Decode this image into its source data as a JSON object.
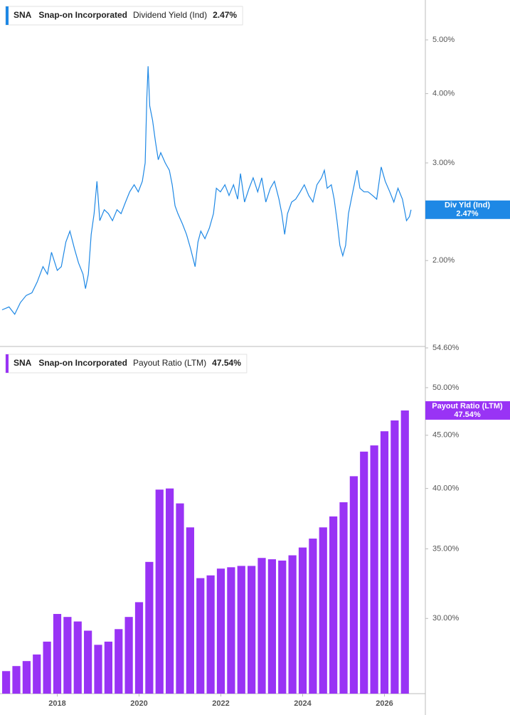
{
  "chart_data": [
    {
      "type": "line",
      "ticker": "SNA",
      "company": "Snap-on Incorporated",
      "series_name": "Dividend Yield (Ind)",
      "badge_label": "Div Yld (Ind)",
      "last": {
        "value": 2.47,
        "label": "2.47%"
      },
      "color": "#1e88e5",
      "log_y": true,
      "xlim": [
        2016.6,
        2027.0
      ],
      "ylim": [
        1.4,
        5.9
      ],
      "yticks": [
        {
          "value": 2,
          "label": "2.00%"
        },
        {
          "value": 3,
          "label": "3.00%"
        },
        {
          "value": 4,
          "label": "4.00%"
        },
        {
          "value": 5,
          "label": "5.00%"
        }
      ],
      "x": [
        2016.65,
        2016.82,
        2016.96,
        2017.1,
        2017.24,
        2017.38,
        2017.51,
        2017.65,
        2017.76,
        2017.86,
        2018.0,
        2018.1,
        2018.21,
        2018.31,
        2018.42,
        2018.52,
        2018.63,
        2018.69,
        2018.76,
        2018.83,
        2018.9,
        2018.97,
        2019.04,
        2019.15,
        2019.25,
        2019.35,
        2019.46,
        2019.56,
        2019.67,
        2019.77,
        2019.88,
        2019.98,
        2020.08,
        2020.15,
        2020.19,
        2020.22,
        2020.26,
        2020.33,
        2020.4,
        2020.47,
        2020.53,
        2020.64,
        2020.74,
        2020.81,
        2020.88,
        2020.95,
        2021.06,
        2021.16,
        2021.26,
        2021.37,
        2021.44,
        2021.51,
        2021.61,
        2021.72,
        2021.82,
        2021.89,
        2021.99,
        2022.1,
        2022.2,
        2022.31,
        2022.41,
        2022.48,
        2022.58,
        2022.69,
        2022.79,
        2022.9,
        2023.0,
        2023.1,
        2023.21,
        2023.31,
        2023.42,
        2023.49,
        2023.56,
        2023.63,
        2023.73,
        2023.83,
        2023.94,
        2024.04,
        2024.15,
        2024.25,
        2024.35,
        2024.46,
        2024.53,
        2024.6,
        2024.7,
        2024.77,
        2024.84,
        2024.91,
        2024.98,
        2025.05,
        2025.12,
        2025.19,
        2025.26,
        2025.33,
        2025.4,
        2025.5,
        2025.6,
        2025.71,
        2025.81,
        2025.92,
        2026.02,
        2026.13,
        2026.23,
        2026.33,
        2026.44,
        2026.54,
        2026.61,
        2026.65
      ],
      "values": [
        1.63,
        1.65,
        1.6,
        1.68,
        1.73,
        1.75,
        1.83,
        1.95,
        1.89,
        2.07,
        1.92,
        1.95,
        2.16,
        2.26,
        2.1,
        1.98,
        1.89,
        1.78,
        1.89,
        2.23,
        2.43,
        2.78,
        2.36,
        2.47,
        2.43,
        2.36,
        2.47,
        2.43,
        2.55,
        2.66,
        2.74,
        2.66,
        2.78,
        3.0,
        3.92,
        4.48,
        3.8,
        3.58,
        3.28,
        3.04,
        3.13,
        3.0,
        2.91,
        2.74,
        2.51,
        2.43,
        2.33,
        2.23,
        2.1,
        1.95,
        2.16,
        2.26,
        2.19,
        2.29,
        2.43,
        2.7,
        2.66,
        2.74,
        2.62,
        2.74,
        2.58,
        2.87,
        2.55,
        2.7,
        2.82,
        2.66,
        2.82,
        2.55,
        2.7,
        2.78,
        2.58,
        2.43,
        2.23,
        2.43,
        2.55,
        2.58,
        2.66,
        2.74,
        2.62,
        2.55,
        2.74,
        2.82,
        2.91,
        2.7,
        2.74,
        2.58,
        2.36,
        2.13,
        2.04,
        2.13,
        2.43,
        2.58,
        2.74,
        2.91,
        2.7,
        2.66,
        2.66,
        2.62,
        2.58,
        2.95,
        2.78,
        2.66,
        2.55,
        2.7,
        2.58,
        2.36,
        2.4,
        2.47
      ]
    },
    {
      "type": "bar",
      "ticker": "SNA",
      "company": "Snap-on Incorporated",
      "series_name": "Payout Ratio (LTM)",
      "badge_label": "Payout Ratio (LTM)",
      "last": {
        "value": 47.54,
        "label": "47.54%"
      },
      "color": "#9933f5",
      "log_y": true,
      "xlim": [
        2016.6,
        2027.0
      ],
      "ylim": [
        25.4,
        54.6
      ],
      "xticks": [
        2018,
        2020,
        2022,
        2024,
        2026
      ],
      "yticks": [
        {
          "value": 30,
          "label": "30.00%"
        },
        {
          "value": 35,
          "label": "35.00%"
        },
        {
          "value": 40,
          "label": "40.00%"
        },
        {
          "value": 45,
          "label": "45.00%"
        },
        {
          "value": 50,
          "label": "50.00%"
        },
        {
          "value": 54.6,
          "label": "54.60%"
        }
      ],
      "x": [
        2016.75,
        2017.0,
        2017.25,
        2017.5,
        2017.75,
        2018.0,
        2018.25,
        2018.5,
        2018.75,
        2019.0,
        2019.25,
        2019.5,
        2019.75,
        2020.0,
        2020.25,
        2020.5,
        2020.75,
        2021.0,
        2021.25,
        2021.5,
        2021.75,
        2022.0,
        2022.25,
        2022.5,
        2022.75,
        2023.0,
        2023.25,
        2023.5,
        2023.75,
        2024.0,
        2024.25,
        2024.5,
        2024.75,
        2025.0,
        2025.25,
        2025.5,
        2025.75,
        2026.0,
        2026.25,
        2026.5
      ],
      "values": [
        26.7,
        27.0,
        27.3,
        27.7,
        28.5,
        30.3,
        30.1,
        29.8,
        29.2,
        28.3,
        28.5,
        29.3,
        30.1,
        31.1,
        34.0,
        39.9,
        40.0,
        38.7,
        36.7,
        32.8,
        33.0,
        33.5,
        33.6,
        33.7,
        33.7,
        34.3,
        34.2,
        34.1,
        34.5,
        35.1,
        35.8,
        36.7,
        37.6,
        38.8,
        41.1,
        43.4,
        44.0,
        45.4,
        46.5,
        47.54
      ]
    }
  ]
}
